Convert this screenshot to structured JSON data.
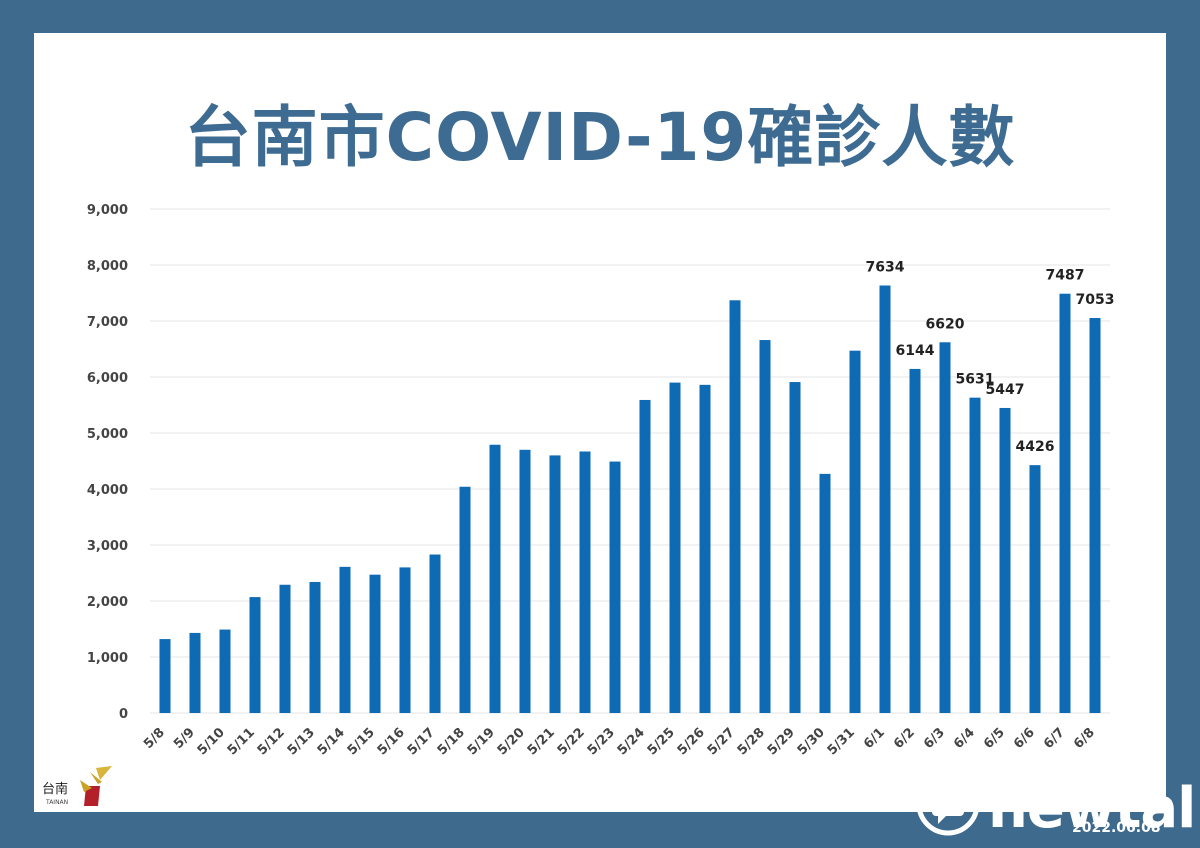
{
  "title": "台南市COVID-19確診人數",
  "date_stamp": "2022.06.08",
  "logo": {
    "text": "台南",
    "sub": "TAINAN",
    "icon": "tainan-logo-icon"
  },
  "watermark": {
    "brand": "newtalk",
    "icon": "newtalk-bubble-icon"
  },
  "colors": {
    "background": "#3e6a8e",
    "bar": "#0f6ab4",
    "title": "#3d6b91",
    "grid": "#e6e6e6"
  },
  "chart_data": {
    "type": "bar",
    "title": "",
    "xlabel": "",
    "ylabel": "",
    "ylim": [
      0,
      9000
    ],
    "yticks": [
      "0",
      "1,000",
      "2,000",
      "3,000",
      "4,000",
      "5,000",
      "6,000",
      "7,000",
      "8,000",
      "9,000"
    ],
    "grid": true,
    "categories": [
      "5/8",
      "5/9",
      "5/10",
      "5/11",
      "5/12",
      "5/13",
      "5/14",
      "5/15",
      "5/16",
      "5/17",
      "5/18",
      "5/19",
      "5/20",
      "5/21",
      "5/22",
      "5/23",
      "5/24",
      "5/25",
      "5/26",
      "5/27",
      "5/28",
      "5/29",
      "5/30",
      "5/31",
      "6/1",
      "6/2",
      "6/3",
      "6/4",
      "6/5",
      "6/6",
      "6/7",
      "6/8"
    ],
    "values": [
      1320,
      1430,
      1490,
      2070,
      2290,
      2340,
      2610,
      2470,
      2600,
      2830,
      4040,
      4790,
      4700,
      4600,
      4670,
      4490,
      5590,
      5900,
      5860,
      7370,
      6660,
      5910,
      4270,
      6470,
      7634,
      6144,
      6620,
      5631,
      5447,
      4426,
      7487,
      7053
    ],
    "data_labels": [
      "",
      "",
      "",
      "",
      "",
      "",
      "",
      "",
      "",
      "",
      "",
      "",
      "",
      "",
      "",
      "",
      "",
      "",
      "",
      "",
      "",
      "",
      "",
      "",
      "7634",
      "6144",
      "6620",
      "5631",
      "5447",
      "4426",
      "7487",
      "7053"
    ]
  }
}
